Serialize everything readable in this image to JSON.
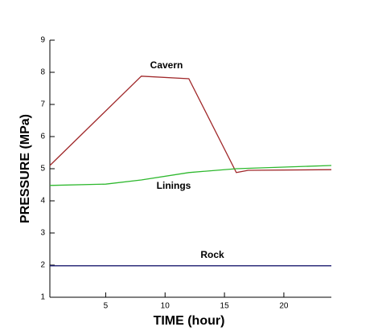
{
  "chart_data": {
    "type": "line",
    "x_label": "TIME (hour)",
    "y_label": "PRESSURE (MPa)",
    "xlim": [
      0.3,
      24
    ],
    "ylim": [
      1,
      9
    ],
    "xticks": [
      5,
      10,
      15,
      20
    ],
    "yticks": [
      1,
      2,
      3,
      4,
      5,
      6,
      7,
      8,
      9
    ],
    "series": [
      {
        "name": "Cavern",
        "color": "#a0282a",
        "x": [
          0.3,
          8,
          12,
          16,
          17,
          24
        ],
        "values": [
          5.1,
          7.88,
          7.8,
          4.88,
          4.95,
          4.97
        ]
      },
      {
        "name": "Linings",
        "color": "#2db82d",
        "x": [
          0.3,
          5,
          8,
          12,
          16,
          20,
          24
        ],
        "values": [
          4.48,
          4.52,
          4.65,
          4.88,
          5.0,
          5.05,
          5.1
        ]
      },
      {
        "name": "Rock",
        "color": "#1a1a6e",
        "x": [
          0.3,
          24
        ],
        "values": [
          1.98,
          1.98
        ]
      }
    ]
  }
}
